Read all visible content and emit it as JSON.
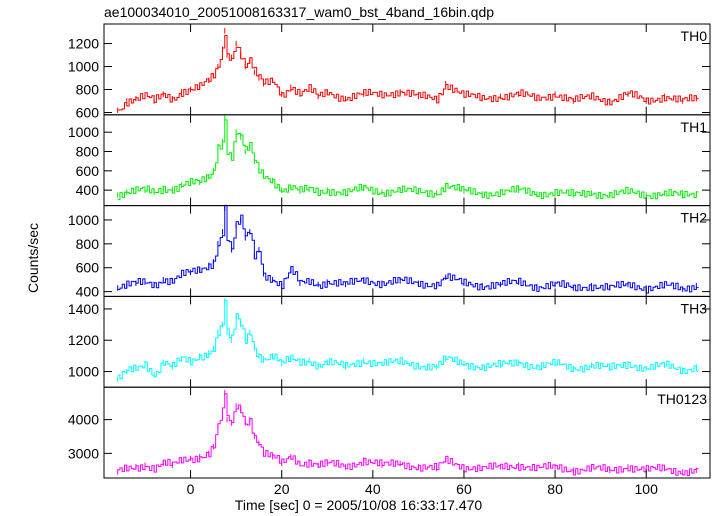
{
  "chart_data": {
    "type": "line",
    "title": "ae100034010_20051008163317_wam0_bst_4band_16bin.qdp",
    "xlabel": "Time [sec] 0 = 2005/10/08 16:33:17.470",
    "ylabel": "Counts/sec",
    "xlim": [
      -19,
      114
    ],
    "x_ticks": [
      0,
      20,
      40,
      60,
      80,
      100
    ],
    "x_tick_labels": [
      "0",
      "20",
      "40",
      "60",
      "80",
      "100"
    ],
    "error_bars": true,
    "grid": false,
    "series": [
      {
        "name": "TH0",
        "color": "#ff0000",
        "ylim": [
          580,
          1370
        ],
        "y_ticks": [
          600,
          800,
          1000,
          1200
        ],
        "y_tick_labels": [
          "600",
          "800",
          "1000",
          "1200"
        ],
        "x": [
          -16,
          -14,
          -12,
          -10,
          -8,
          -6,
          -4,
          -2,
          0,
          2,
          4,
          5,
          6,
          7,
          7.5,
          8,
          9,
          10,
          11,
          12,
          13,
          14,
          15,
          16,
          18,
          20,
          22,
          24,
          26,
          28,
          30,
          34,
          38,
          42,
          46,
          50,
          54,
          56,
          60,
          64,
          68,
          72,
          76,
          80,
          84,
          88,
          92,
          96,
          100,
          104,
          108,
          111
        ],
        "values": [
          620,
          700,
          720,
          740,
          700,
          760,
          720,
          780,
          800,
          820,
          880,
          920,
          1000,
          1150,
          1310,
          1100,
          1080,
          1200,
          1100,
          1000,
          1050,
          950,
          900,
          850,
          880,
          760,
          820,
          760,
          800,
          740,
          780,
          720,
          760,
          760,
          780,
          740,
          720,
          850,
          750,
          720,
          740,
          760,
          720,
          760,
          700,
          740,
          700,
          760,
          700,
          740,
          700,
          720
        ]
      },
      {
        "name": "TH1",
        "color": "#00ee00",
        "ylim": [
          240,
          1180
        ],
        "y_ticks": [
          400,
          600,
          800,
          1000
        ],
        "y_tick_labels": [
          "400",
          "600",
          "800",
          "1000"
        ],
        "x": [
          -16,
          -14,
          -12,
          -10,
          -8,
          -6,
          -4,
          -2,
          0,
          2,
          4,
          5,
          6,
          7,
          7.5,
          8,
          9,
          10,
          11,
          12,
          13,
          14,
          15,
          16,
          18,
          20,
          22,
          24,
          26,
          28,
          30,
          34,
          38,
          42,
          46,
          50,
          54,
          56,
          60,
          64,
          68,
          72,
          76,
          80,
          84,
          88,
          92,
          96,
          100,
          104,
          108,
          111
        ],
        "values": [
          350,
          380,
          390,
          400,
          380,
          420,
          410,
          450,
          470,
          480,
          540,
          600,
          850,
          900,
          1150,
          800,
          750,
          1000,
          950,
          800,
          850,
          700,
          600,
          550,
          500,
          400,
          430,
          390,
          410,
          380,
          400,
          370,
          420,
          380,
          400,
          380,
          370,
          450,
          390,
          360,
          380,
          400,
          360,
          380,
          350,
          370,
          350,
          380,
          350,
          370,
          340,
          360
        ]
      },
      {
        "name": "TH2",
        "color": "#0000ff",
        "ylim": [
          360,
          1120
        ],
        "y_ticks": [
          400,
          600,
          800,
          1000
        ],
        "y_tick_labels": [
          "400",
          "600",
          "800",
          "1000"
        ],
        "x": [
          -16,
          -14,
          -12,
          -10,
          -8,
          -6,
          -4,
          -2,
          0,
          2,
          4,
          5,
          6,
          7,
          7.5,
          8,
          9,
          10,
          11,
          12,
          13,
          14,
          15,
          16,
          18,
          20,
          22,
          24,
          26,
          28,
          30,
          34,
          38,
          42,
          46,
          50,
          54,
          56,
          60,
          64,
          68,
          72,
          76,
          80,
          84,
          88,
          92,
          96,
          100,
          104,
          108,
          111
        ],
        "values": [
          430,
          450,
          470,
          480,
          460,
          500,
          490,
          540,
          560,
          580,
          620,
          650,
          800,
          900,
          1100,
          850,
          750,
          950,
          1000,
          850,
          900,
          700,
          750,
          550,
          500,
          450,
          580,
          470,
          490,
          460,
          480,
          460,
          500,
          470,
          490,
          470,
          460,
          520,
          470,
          450,
          460,
          480,
          440,
          460,
          430,
          450,
          430,
          460,
          430,
          450,
          420,
          450
        ]
      },
      {
        "name": "TH3",
        "color": "#00ffff",
        "ylim": [
          900,
          1480
        ],
        "y_ticks": [
          1000,
          1200,
          1400
        ],
        "y_tick_labels": [
          "1000",
          "1200",
          "1400"
        ],
        "x": [
          -16,
          -14,
          -12,
          -10,
          -8,
          -6,
          -4,
          -2,
          0,
          2,
          4,
          5,
          6,
          7,
          7.5,
          8,
          9,
          10,
          11,
          12,
          13,
          14,
          15,
          16,
          18,
          20,
          22,
          24,
          26,
          28,
          30,
          34,
          38,
          42,
          46,
          50,
          54,
          56,
          60,
          64,
          68,
          72,
          76,
          80,
          84,
          88,
          92,
          96,
          100,
          104,
          108,
          111
        ],
        "values": [
          950,
          1000,
          1020,
          1050,
          980,
          1060,
          1030,
          1080,
          1060,
          1100,
          1120,
          1150,
          1250,
          1300,
          1450,
          1250,
          1200,
          1350,
          1300,
          1200,
          1250,
          1150,
          1100,
          1080,
          1100,
          1050,
          1080,
          1060,
          1070,
          1040,
          1060,
          1030,
          1070,
          1050,
          1060,
          1040,
          1030,
          1080,
          1050,
          1030,
          1040,
          1060,
          1030,
          1050,
          1020,
          1040,
          1020,
          1050,
          1020,
          1040,
          1010,
          1030
        ]
      },
      {
        "name": "TH0123",
        "color": "#ff00ff",
        "ylim": [
          2270,
          4960
        ],
        "y_ticks": [
          3000,
          4000
        ],
        "y_tick_labels": [
          "3000",
          "4000"
        ],
        "x": [
          -16,
          -14,
          -12,
          -10,
          -8,
          -6,
          -4,
          -2,
          0,
          2,
          4,
          5,
          6,
          7,
          7.5,
          8,
          9,
          10,
          11,
          12,
          13,
          14,
          15,
          16,
          18,
          20,
          22,
          24,
          26,
          28,
          30,
          34,
          38,
          42,
          46,
          50,
          54,
          56,
          60,
          64,
          68,
          72,
          76,
          80,
          84,
          88,
          92,
          96,
          100,
          104,
          108,
          111
        ],
        "values": [
          2450,
          2550,
          2600,
          2650,
          2550,
          2700,
          2650,
          2800,
          2850,
          2900,
          3000,
          3200,
          3800,
          4200,
          4800,
          4000,
          3900,
          4400,
          4300,
          3900,
          4000,
          3500,
          3300,
          3000,
          2900,
          2700,
          2900,
          2700,
          2750,
          2650,
          2700,
          2600,
          2800,
          2650,
          2700,
          2600,
          2550,
          2800,
          2600,
          2550,
          2600,
          2650,
          2550,
          2600,
          2500,
          2550,
          2500,
          2600,
          2500,
          2550,
          2450,
          2500
        ]
      }
    ]
  }
}
